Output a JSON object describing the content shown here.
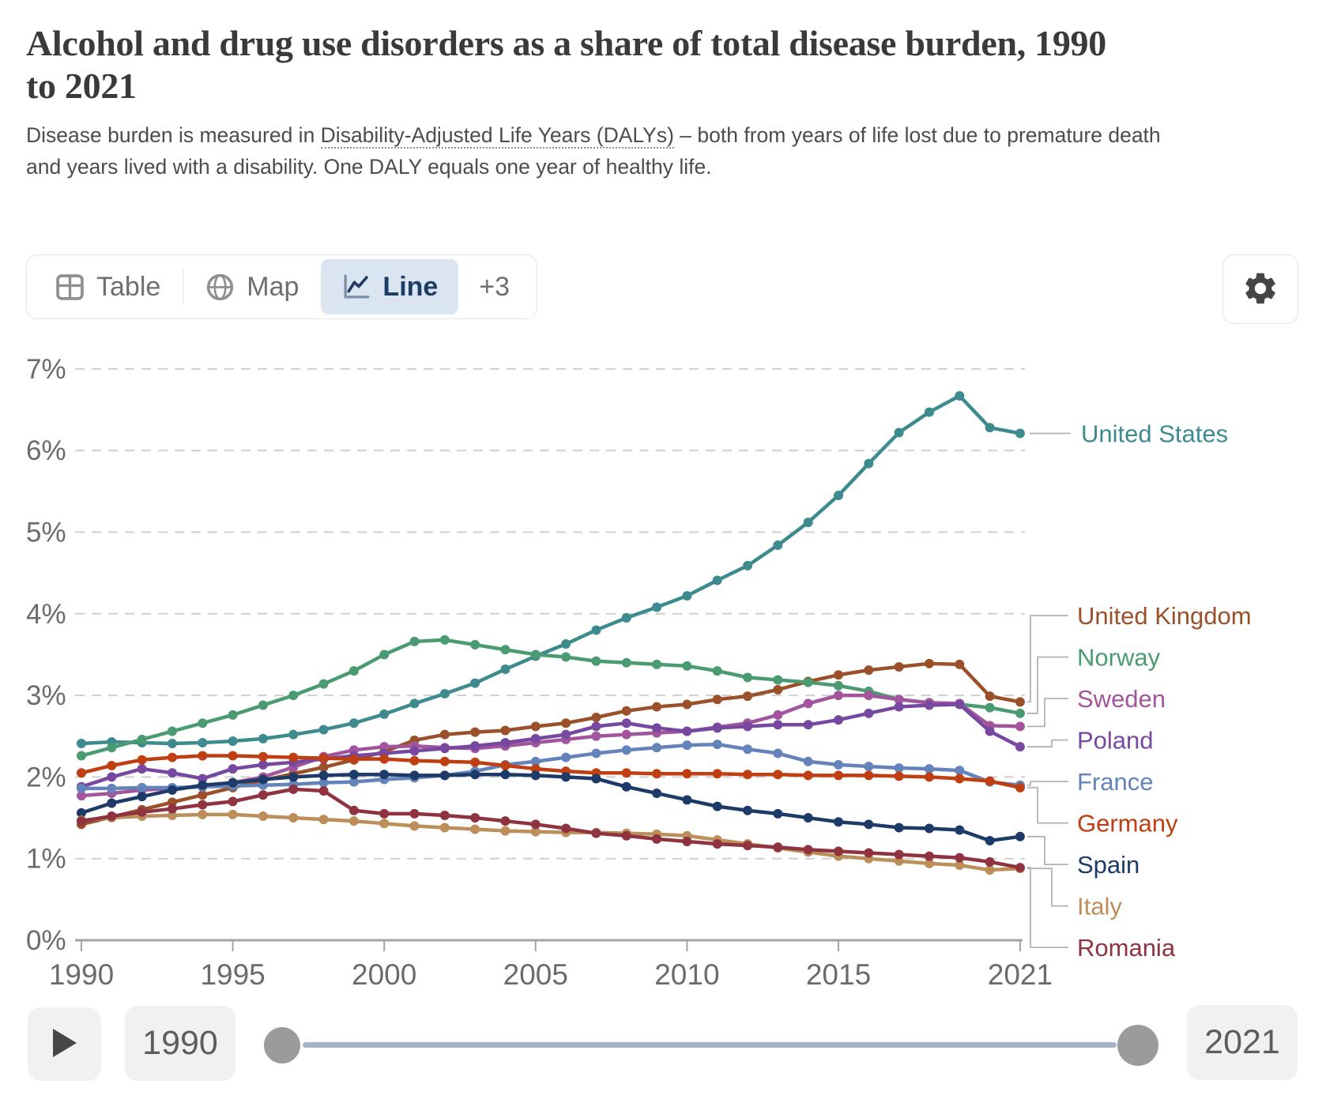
{
  "header": {
    "title": "Alcohol and drug use disorders as a share of total disease burden, 1990 to 2021",
    "subtitle_pre": "Disease burden is measured in ",
    "subtitle_link": "Disability-Adjusted Life Years (DALYs)",
    "subtitle_post": " – both from years of life lost due to premature death and years lived with a disability. One DALY equals one year of healthy life."
  },
  "toolbar": {
    "tabs": [
      {
        "label": "Table",
        "icon": "table-icon",
        "active": false
      },
      {
        "label": "Map",
        "icon": "globe-icon",
        "active": false
      },
      {
        "label": "Line",
        "icon": "line-chart-icon",
        "active": true
      }
    ],
    "more_label": "+3",
    "settings_icon": "gear-icon"
  },
  "timeline": {
    "start_label": "1990",
    "end_label": "2021",
    "play_icon": "play-icon"
  },
  "chart_data": {
    "type": "line",
    "title": "Alcohol and drug use disorders as a share of total disease burden, 1990 to 2021",
    "xlabel": "",
    "ylabel": "",
    "unit": "%",
    "ylim": [
      0,
      7
    ],
    "yticks": [
      "0%",
      "1%",
      "2%",
      "3%",
      "4%",
      "5%",
      "6%",
      "7%"
    ],
    "xticks": [
      1990,
      1995,
      2000,
      2005,
      2010,
      2015,
      2021
    ],
    "grid": "dashed",
    "legend_position": "right-of-lines",
    "x": [
      1990,
      1991,
      1992,
      1993,
      1994,
      1995,
      1996,
      1997,
      1998,
      1999,
      2000,
      2001,
      2002,
      2003,
      2004,
      2005,
      2006,
      2007,
      2008,
      2009,
      2010,
      2011,
      2012,
      2013,
      2014,
      2015,
      2016,
      2017,
      2018,
      2019,
      2020,
      2021
    ],
    "series": [
      {
        "name": "United States",
        "color": "#3d8b8e",
        "values": [
          2.41,
          2.43,
          2.42,
          2.41,
          2.42,
          2.44,
          2.47,
          2.52,
          2.58,
          2.66,
          2.77,
          2.9,
          3.02,
          3.15,
          3.32,
          3.48,
          3.63,
          3.8,
          3.95,
          4.08,
          4.22,
          4.41,
          4.59,
          4.84,
          5.12,
          5.45,
          5.84,
          6.22,
          6.47,
          6.67,
          6.28,
          6.21
        ]
      },
      {
        "name": "United Kingdom",
        "color": "#9a5129",
        "values": [
          1.42,
          1.51,
          1.6,
          1.69,
          1.78,
          1.87,
          1.96,
          2.04,
          2.12,
          2.21,
          2.31,
          2.45,
          2.52,
          2.55,
          2.57,
          2.62,
          2.66,
          2.73,
          2.81,
          2.86,
          2.89,
          2.95,
          2.99,
          3.07,
          3.17,
          3.25,
          3.31,
          3.35,
          3.39,
          3.38,
          2.99,
          2.92
        ]
      },
      {
        "name": "Norway",
        "color": "#4a9b72",
        "values": [
          2.26,
          2.36,
          2.46,
          2.56,
          2.66,
          2.76,
          2.88,
          3.0,
          3.14,
          3.3,
          3.5,
          3.66,
          3.68,
          3.62,
          3.56,
          3.5,
          3.47,
          3.42,
          3.4,
          3.38,
          3.36,
          3.3,
          3.22,
          3.19,
          3.16,
          3.12,
          3.05,
          2.95,
          2.91,
          2.89,
          2.85,
          2.78
        ]
      },
      {
        "name": "Sweden",
        "color": "#a2559c",
        "values": [
          1.77,
          1.8,
          1.84,
          1.86,
          1.88,
          1.93,
          2.0,
          2.12,
          2.25,
          2.33,
          2.37,
          2.38,
          2.36,
          2.35,
          2.38,
          2.42,
          2.46,
          2.5,
          2.52,
          2.54,
          2.56,
          2.61,
          2.66,
          2.76,
          2.9,
          3.0,
          3.0,
          2.95,
          2.91,
          2.9,
          2.63,
          2.62
        ]
      },
      {
        "name": "Poland",
        "color": "#7648a0",
        "values": [
          1.88,
          2.0,
          2.1,
          2.05,
          1.98,
          2.1,
          2.15,
          2.18,
          2.22,
          2.26,
          2.29,
          2.32,
          2.35,
          2.38,
          2.42,
          2.47,
          2.52,
          2.62,
          2.66,
          2.6,
          2.56,
          2.6,
          2.62,
          2.64,
          2.64,
          2.7,
          2.78,
          2.86,
          2.88,
          2.89,
          2.56,
          2.37
        ]
      },
      {
        "name": "France",
        "color": "#6583bb",
        "values": [
          1.86,
          1.86,
          1.87,
          1.87,
          1.88,
          1.89,
          1.9,
          1.91,
          1.93,
          1.94,
          1.97,
          1.99,
          2.02,
          2.07,
          2.15,
          2.19,
          2.24,
          2.29,
          2.33,
          2.36,
          2.39,
          2.4,
          2.34,
          2.29,
          2.19,
          2.15,
          2.13,
          2.11,
          2.1,
          2.08,
          1.94,
          1.9
        ]
      },
      {
        "name": "Germany",
        "color": "#bf3f12",
        "values": [
          2.05,
          2.14,
          2.21,
          2.24,
          2.26,
          2.26,
          2.25,
          2.24,
          2.23,
          2.22,
          2.22,
          2.2,
          2.19,
          2.18,
          2.14,
          2.1,
          2.07,
          2.05,
          2.05,
          2.04,
          2.04,
          2.04,
          2.03,
          2.03,
          2.02,
          2.02,
          2.02,
          2.01,
          2.0,
          1.98,
          1.95,
          1.87
        ]
      },
      {
        "name": "Spain",
        "color": "#1e3a68",
        "values": [
          1.56,
          1.68,
          1.76,
          1.84,
          1.9,
          1.93,
          1.97,
          2.0,
          2.02,
          2.03,
          2.03,
          2.02,
          2.02,
          2.03,
          2.03,
          2.02,
          2.0,
          1.98,
          1.88,
          1.8,
          1.72,
          1.64,
          1.59,
          1.55,
          1.5,
          1.45,
          1.42,
          1.38,
          1.37,
          1.35,
          1.22,
          1.27
        ]
      },
      {
        "name": "Italy",
        "color": "#bc8e5a",
        "values": [
          1.47,
          1.5,
          1.52,
          1.53,
          1.54,
          1.54,
          1.52,
          1.5,
          1.48,
          1.46,
          1.43,
          1.4,
          1.38,
          1.36,
          1.34,
          1.33,
          1.32,
          1.32,
          1.31,
          1.3,
          1.28,
          1.23,
          1.18,
          1.13,
          1.08,
          1.03,
          1.0,
          0.97,
          0.94,
          0.92,
          0.86,
          0.88
        ]
      },
      {
        "name": "Romania",
        "color": "#903340",
        "values": [
          1.46,
          1.52,
          1.57,
          1.61,
          1.66,
          1.7,
          1.78,
          1.85,
          1.83,
          1.59,
          1.55,
          1.55,
          1.53,
          1.5,
          1.46,
          1.42,
          1.37,
          1.31,
          1.28,
          1.24,
          1.21,
          1.18,
          1.16,
          1.14,
          1.11,
          1.09,
          1.07,
          1.05,
          1.03,
          1.01,
          0.96,
          0.89
        ]
      }
    ]
  }
}
